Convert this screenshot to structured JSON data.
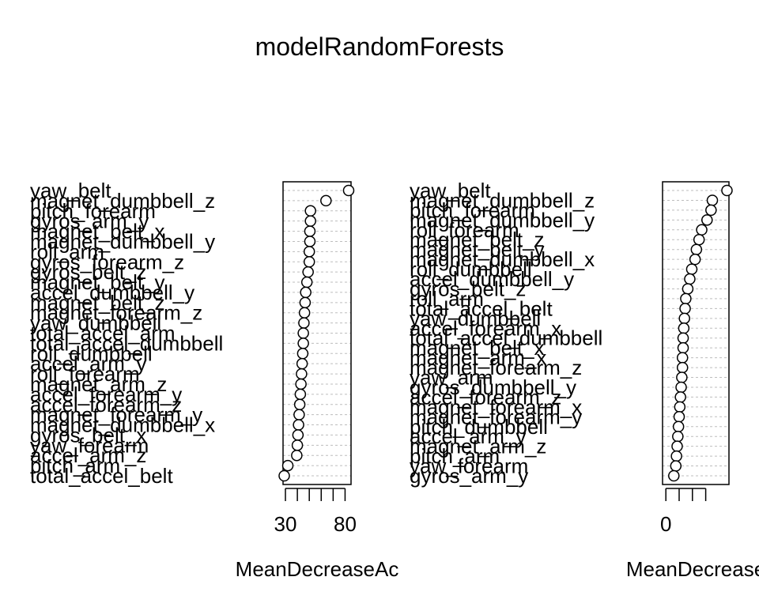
{
  "title": "modelRandomForests",
  "chart_data": [
    {
      "type": "scatter",
      "xlabel": "MeanDecreaseAc",
      "grid": true,
      "xlim": [
        28,
        85
      ],
      "xticks": [
        30,
        40,
        50,
        60,
        70,
        80
      ],
      "xtick_labels": [
        "30",
        "80"
      ],
      "categories": [
        "yaw_belt",
        "magnet_dumbbell_z",
        "pitch_forearm",
        "gyros_arm_y",
        "magnet_belt_x",
        "magnet_dumbbell_y",
        "roll_arm",
        "gyros_forearm_z",
        "gyros_belt_z",
        "magnet_belt_y",
        "accel_dumbbell_y",
        "magnet_belt_z",
        "magnet_forearm_z",
        "yaw_dumbbell",
        "total_accel_arm",
        "total_accel_dumbbell",
        "roll_dumbbell",
        "accel_arm_y",
        "roll_forearm",
        "magnet_arm_z",
        "accel_forearm_y",
        "accel_forearm_z",
        "magnet_forearm_y",
        "magnet_dumbbell_x",
        "gyros_belt_x",
        "yaw_forearm",
        "accel_arm_z",
        "pitch_arm",
        "total_accel_belt"
      ],
      "values": [
        83,
        64,
        51,
        51,
        50.5,
        50.5,
        50,
        50,
        49,
        48,
        47,
        46.5,
        46,
        45.5,
        45,
        45,
        44.5,
        44,
        43.5,
        43,
        42.5,
        42,
        41.5,
        41,
        40.5,
        40,
        39.5,
        32,
        29
      ]
    },
    {
      "type": "scatter",
      "xlabel": "MeanDecrease",
      "grid": true,
      "xlim": [
        -5,
        95
      ],
      "xticks": [
        0,
        20,
        40,
        60
      ],
      "xtick_labels": [
        "0"
      ],
      "categories": [
        "yaw_belt",
        "magnet_dumbbell_z",
        "pitch_forearm",
        "magnet_dumbbell_y",
        "roll_forearm",
        "magnet_belt_z",
        "magnet_belt_y",
        "magnet_dumbbell_x",
        "roll_dumbbell",
        "accel_dumbbell_y",
        "gyros_belt_z",
        "roll_arm",
        "total_accel_belt",
        "yaw_dumbbell",
        "accel_forearm_x",
        "total_accel_dumbbell",
        "magnet_belt_x",
        "magnet_arm_x",
        "magnet_forearm_z",
        "yaw_arm",
        "gyros_dumbbell_y",
        "accel_forearm_z",
        "magnet_forearm_x",
        "magnet_forearm_y",
        "pitch_dumbbell",
        "accel_arm_y",
        "magnet_arm_z",
        "pitch_arm",
        "yaw_forearm",
        "gyros_arm_y"
      ],
      "values": [
        92,
        70,
        68,
        62,
        54,
        50,
        46,
        44,
        39,
        36,
        33,
        30,
        29,
        28,
        27,
        26,
        26,
        25,
        25,
        24,
        23,
        22,
        21,
        20,
        19,
        18,
        17,
        16,
        15,
        12
      ]
    }
  ]
}
